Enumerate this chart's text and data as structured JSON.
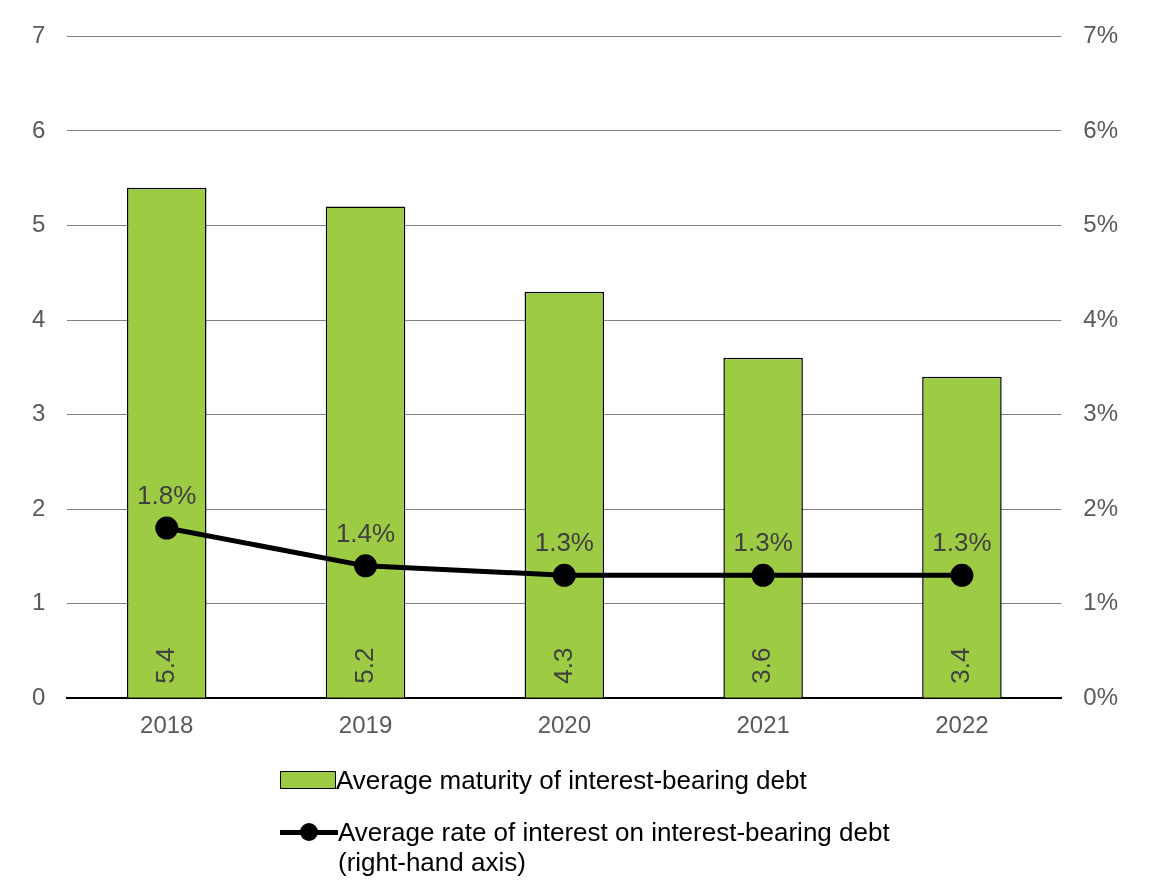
{
  "chart_data": {
    "type": "bar",
    "categories": [
      "2018",
      "2019",
      "2020",
      "2021",
      "2022"
    ],
    "series": [
      {
        "name": "Average maturity of interest-bearing debt",
        "color": "#9dcb44",
        "values": [
          5.4,
          5.2,
          4.3,
          3.6,
          3.4
        ],
        "value_labels": [
          "5.4",
          "5.2",
          "4.3",
          "3.6",
          "3.4"
        ]
      },
      {
        "name": "Average rate of interest on interest-bearing debt (right-hand axis)",
        "type": "line",
        "axis": "y2",
        "color": "#000000",
        "values": [
          1.8,
          1.4,
          1.3,
          1.3,
          1.3
        ],
        "value_labels": [
          "1.8%",
          "1.4%",
          "1.3%",
          "1.3%",
          "1.3%"
        ]
      }
    ],
    "ylim": [
      0,
      7
    ],
    "yticks": [
      0,
      1,
      2,
      3,
      4,
      5,
      6,
      7
    ],
    "y2lim": [
      0,
      7
    ],
    "y2ticks": [
      {
        "value": 0,
        "label": "0%"
      },
      {
        "value": 1,
        "label": "1%"
      },
      {
        "value": 2,
        "label": "2%"
      },
      {
        "value": 3,
        "label": "3%"
      },
      {
        "value": 4,
        "label": "4%"
      },
      {
        "value": 5,
        "label": "5%"
      },
      {
        "value": 6,
        "label": "6%"
      },
      {
        "value": 7,
        "label": "7%"
      }
    ],
    "grid": "y",
    "legend": "bottom",
    "marker": "circle",
    "line_style": "solid"
  }
}
